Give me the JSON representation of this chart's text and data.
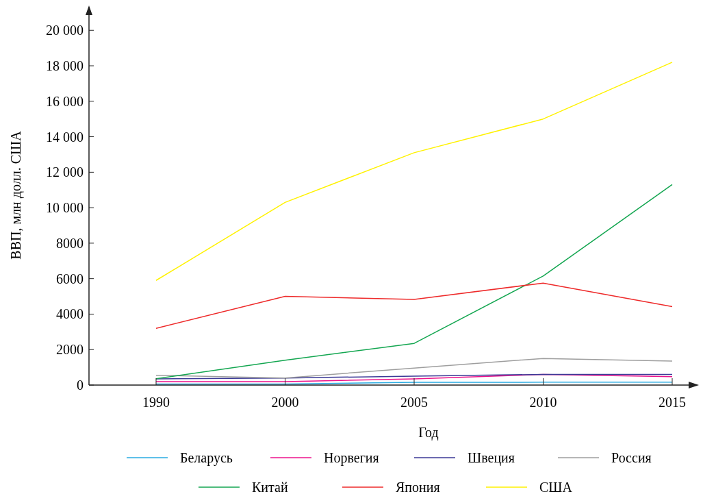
{
  "chart_data": {
    "type": "line",
    "xlabel": "Год",
    "ylabel": "ВВП, млн долл. США",
    "categories": [
      "1990",
      "2000",
      "2005",
      "2010",
      "2015"
    ],
    "series": [
      {
        "name": "Беларусь",
        "color": "#29abe2",
        "values": [
          60,
          60,
          150,
          160,
          160
        ]
      },
      {
        "name": "Норвегия",
        "color": "#ec138c",
        "values": [
          190,
          190,
          350,
          600,
          470
        ]
      },
      {
        "name": "Швеция",
        "color": "#3b3996",
        "values": [
          350,
          400,
          500,
          600,
          600
        ]
      },
      {
        "name": "Россия",
        "color": "#9e9e9e",
        "values": [
          550,
          400,
          960,
          1500,
          1350
        ]
      },
      {
        "name": "Китай",
        "color": "#13a650",
        "values": [
          360,
          1400,
          2350,
          6150,
          11300
        ]
      },
      {
        "name": "Япония",
        "color": "#ee2a2a",
        "values": [
          3200,
          5000,
          4830,
          5750,
          4420
        ]
      },
      {
        "name": "США",
        "color": "#fff200",
        "values": [
          5900,
          10300,
          13100,
          15000,
          18200
        ]
      }
    ],
    "ylim": [
      0,
      21400
    ],
    "yticks": [
      0,
      2000,
      4000,
      6000,
      8000,
      {
        "value": 10000,
        "label": "10 000"
      },
      {
        "value": 12000,
        "label": "12 000"
      },
      {
        "value": 14000,
        "label": "14 000"
      },
      {
        "value": 16000,
        "label": "16 000"
      },
      {
        "value": 18000,
        "label": "18 000"
      },
      {
        "value": 20000,
        "label": "20 000"
      }
    ],
    "legend": "bottom",
    "grid": false,
    "marker": "none",
    "line_style": "solid"
  }
}
